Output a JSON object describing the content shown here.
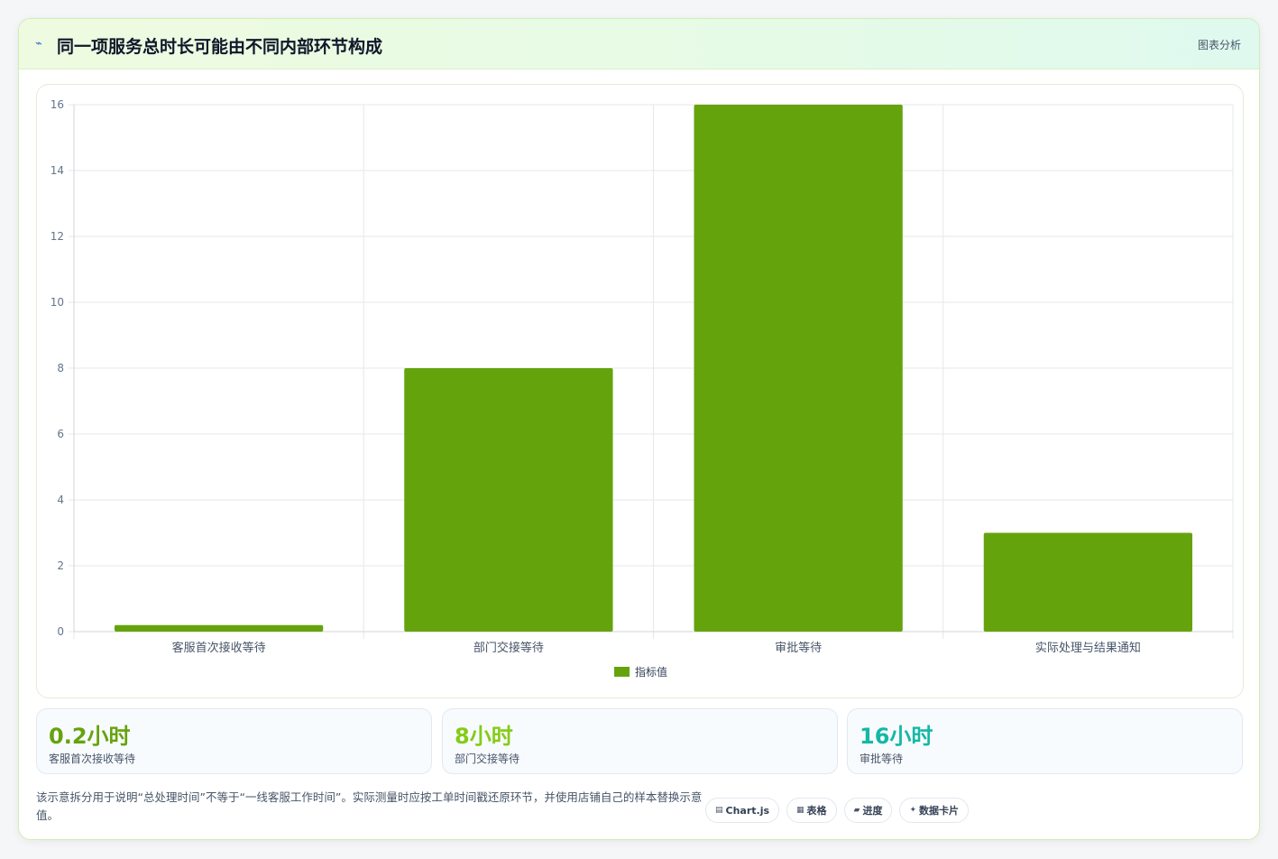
{
  "header": {
    "icon": "chart-trend-icon",
    "title": "同一项服务总时长可能由不同内部环节构成",
    "action_label": "图表分析"
  },
  "chart_data": {
    "type": "bar",
    "categories": [
      "客服首次接收等待",
      "部门交接等待",
      "审批等待",
      "实际处理与结果通知"
    ],
    "series": [
      {
        "name": "指标值",
        "values": [
          0.2,
          8,
          16,
          3
        ],
        "color": "#65a30d"
      }
    ],
    "ylim": [
      0,
      16
    ],
    "yticks": [
      0,
      2,
      4,
      6,
      8,
      10,
      12,
      14,
      16
    ],
    "grid": true,
    "legend_position": "bottom"
  },
  "stats": [
    {
      "value": "0.2小时",
      "label": "客服首次接收等待",
      "color": "#65a30d"
    },
    {
      "value": "8小时",
      "label": "部门交接等待",
      "color": "#84cc16"
    },
    {
      "value": "16小时",
      "label": "审批等待",
      "color": "#14b8a6"
    }
  ],
  "note": "该示意拆分用于说明“总处理时间”不等于“一线客服工作时间”。实际测量时应按工单时间戳还原环节，并使用店铺自己的样本替换示意值。",
  "chips": [
    {
      "icon": "chart-icon",
      "label": "Chart.js"
    },
    {
      "icon": "table-icon",
      "label": "表格"
    },
    {
      "icon": "progress-icon",
      "label": "进度"
    },
    {
      "icon": "sparkle-icon",
      "label": "数据卡片"
    }
  ]
}
